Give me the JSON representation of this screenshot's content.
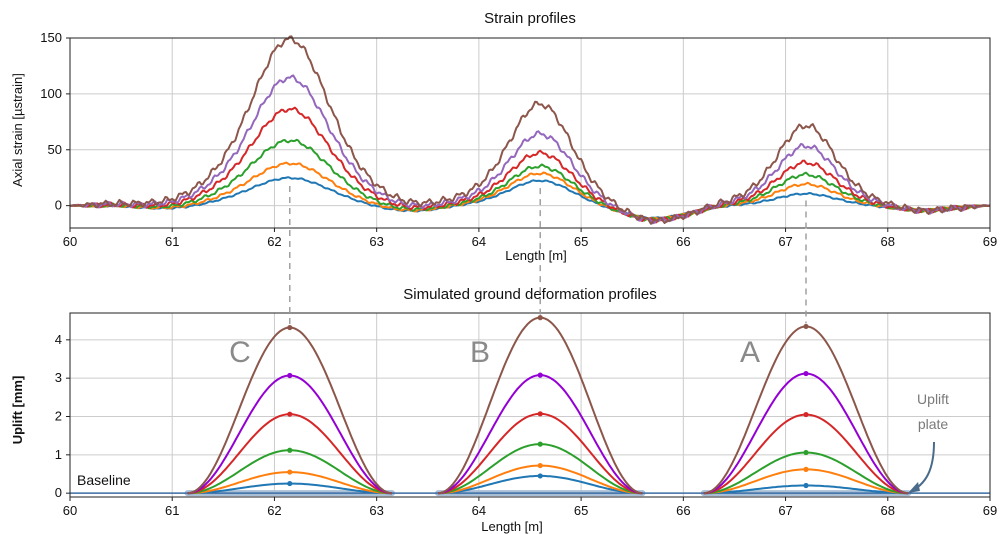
{
  "chart_data": [
    {
      "type": "line",
      "title": "Strain profiles",
      "xlabel": "Length [m]",
      "ylabel": "Axial strain [µstrain]",
      "xlim": [
        60,
        69
      ],
      "ylim": [
        -20,
        150
      ],
      "xticks": [
        60,
        61,
        62,
        63,
        64,
        65,
        66,
        67,
        68,
        69
      ],
      "yticks": [
        0,
        50,
        100,
        150
      ],
      "grid": true,
      "peaks": [
        62.15,
        64.6,
        67.2
      ],
      "series": [
        {
          "color": "#1f77b4",
          "amplitudes": [
            23,
            21,
            10
          ],
          "x": [
            60,
            61,
            62.15,
            63.2,
            64.6,
            65.6,
            67.2,
            68.3,
            69
          ],
          "y": [
            0,
            -4,
            23,
            -8,
            21,
            -13,
            10,
            -3,
            0
          ]
        },
        {
          "color": "#ff7f0e",
          "amplitudes": [
            35,
            27,
            18
          ],
          "x": [
            60,
            61,
            62.15,
            63.2,
            64.6,
            65.6,
            67.2,
            68.3,
            69
          ],
          "y": [
            0,
            -4,
            35,
            -8,
            27,
            -13,
            18,
            -3,
            0
          ]
        },
        {
          "color": "#2ca02c",
          "amplitudes": [
            54,
            33,
            26
          ],
          "x": [
            60,
            61,
            62.15,
            63.2,
            64.6,
            65.6,
            67.2,
            68.3,
            69
          ],
          "y": [
            0,
            -4,
            54,
            -8,
            33,
            -13,
            26,
            -3,
            0
          ]
        },
        {
          "color": "#d62728",
          "amplitudes": [
            80,
            44,
            36
          ],
          "x": [
            60,
            61,
            62.15,
            63.2,
            64.6,
            65.6,
            67.2,
            68.3,
            69
          ],
          "y": [
            0,
            -4,
            80,
            -8,
            44,
            -13,
            36,
            -3,
            0
          ]
        },
        {
          "color": "#9467bd",
          "amplitudes": [
            106,
            60,
            50
          ],
          "x": [
            60,
            61,
            62.15,
            63.2,
            64.6,
            65.6,
            67.2,
            68.3,
            69
          ],
          "y": [
            0,
            -3,
            106,
            -6,
            60,
            -11,
            50,
            -2,
            0
          ]
        },
        {
          "color": "#8c564b",
          "amplitudes": [
            138,
            85,
            67
          ],
          "x": [
            60,
            61,
            62.15,
            63.2,
            64.6,
            65.6,
            67.2,
            68.3,
            69
          ],
          "y": [
            0,
            10,
            138,
            15,
            85,
            -7,
            67,
            10,
            0
          ]
        }
      ]
    },
    {
      "type": "line",
      "title": "Simulated ground deformation profiles",
      "xlabel": "Length [m]",
      "ylabel": "Uplift [mm]",
      "xlim": [
        60,
        69
      ],
      "ylim": [
        -0.1,
        4.7
      ],
      "xticks": [
        60,
        61,
        62,
        63,
        64,
        65,
        66,
        67,
        68,
        69
      ],
      "yticks": [
        0,
        1,
        2,
        3,
        4
      ],
      "grid": true,
      "bumps": [
        {
          "label": "C",
          "center": 62.15,
          "start": 61.15,
          "end": 63.15
        },
        {
          "label": "B",
          "center": 64.6,
          "start": 63.6,
          "end": 65.6
        },
        {
          "label": "A",
          "center": 67.2,
          "start": 66.2,
          "end": 68.2
        }
      ],
      "series": [
        {
          "color": "#1f77b4",
          "peaks": [
            0.25,
            0.45,
            0.2
          ]
        },
        {
          "color": "#ff7f0e",
          "peaks": [
            0.55,
            0.72,
            0.62
          ]
        },
        {
          "color": "#2ca02c",
          "peaks": [
            1.12,
            1.28,
            1.06
          ]
        },
        {
          "color": "#d62728",
          "peaks": [
            2.06,
            2.07,
            2.05
          ]
        },
        {
          "color": "#9400d3",
          "peaks": [
            3.07,
            3.08,
            3.12
          ]
        },
        {
          "color": "#8c564b",
          "peaks": [
            4.32,
            4.58,
            4.35
          ]
        }
      ],
      "annotations": {
        "baseline": "Baseline",
        "uplift_plate": [
          "Uplift",
          "plate"
        ]
      }
    }
  ]
}
